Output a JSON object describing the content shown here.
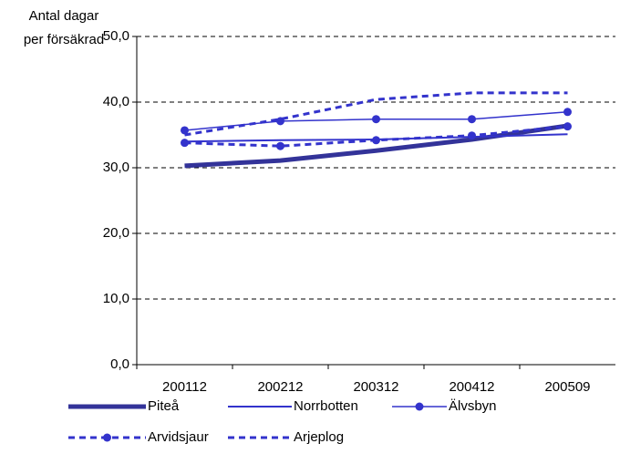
{
  "chart_data": {
    "type": "line",
    "y_label": [
      "Antal dagar",
      "per försäkrad"
    ],
    "categories": [
      "200112",
      "200212",
      "200312",
      "200412",
      "200509"
    ],
    "ylim": [
      0,
      50
    ],
    "yticks": [
      {
        "value": 0,
        "label": "0,0"
      },
      {
        "value": 10,
        "label": "10,0"
      },
      {
        "value": 20,
        "label": "20,0"
      },
      {
        "value": 30,
        "label": "30,0"
      },
      {
        "value": 40,
        "label": "40,0"
      },
      {
        "value": 50,
        "label": "50,0"
      }
    ],
    "grid": true,
    "series": [
      {
        "name": "Piteå",
        "color": "#333399",
        "width": 5,
        "dash": false,
        "marker": false,
        "values": [
          30.3,
          31.1,
          32.6,
          34.3,
          36.4
        ]
      },
      {
        "name": "Norrbotten",
        "color": "#3333cc",
        "width": 2,
        "dash": false,
        "marker": false,
        "values": [
          34.0,
          34.2,
          34.3,
          34.7,
          35.1
        ]
      },
      {
        "name": "Älvsbyn",
        "color": "#3333cc",
        "width": 1.5,
        "dash": false,
        "marker": true,
        "values": [
          35.7,
          37.1,
          37.4,
          37.4,
          38.5
        ]
      },
      {
        "name": "Arvidsjaur",
        "color": "#3333cc",
        "width": 3,
        "dash": true,
        "marker": true,
        "values": [
          33.8,
          33.3,
          34.2,
          34.9,
          36.3
        ]
      },
      {
        "name": "Arjeplog",
        "color": "#3333cc",
        "width": 3,
        "dash": true,
        "marker": false,
        "values": [
          35.0,
          37.4,
          40.4,
          41.4,
          41.4
        ]
      }
    ]
  }
}
